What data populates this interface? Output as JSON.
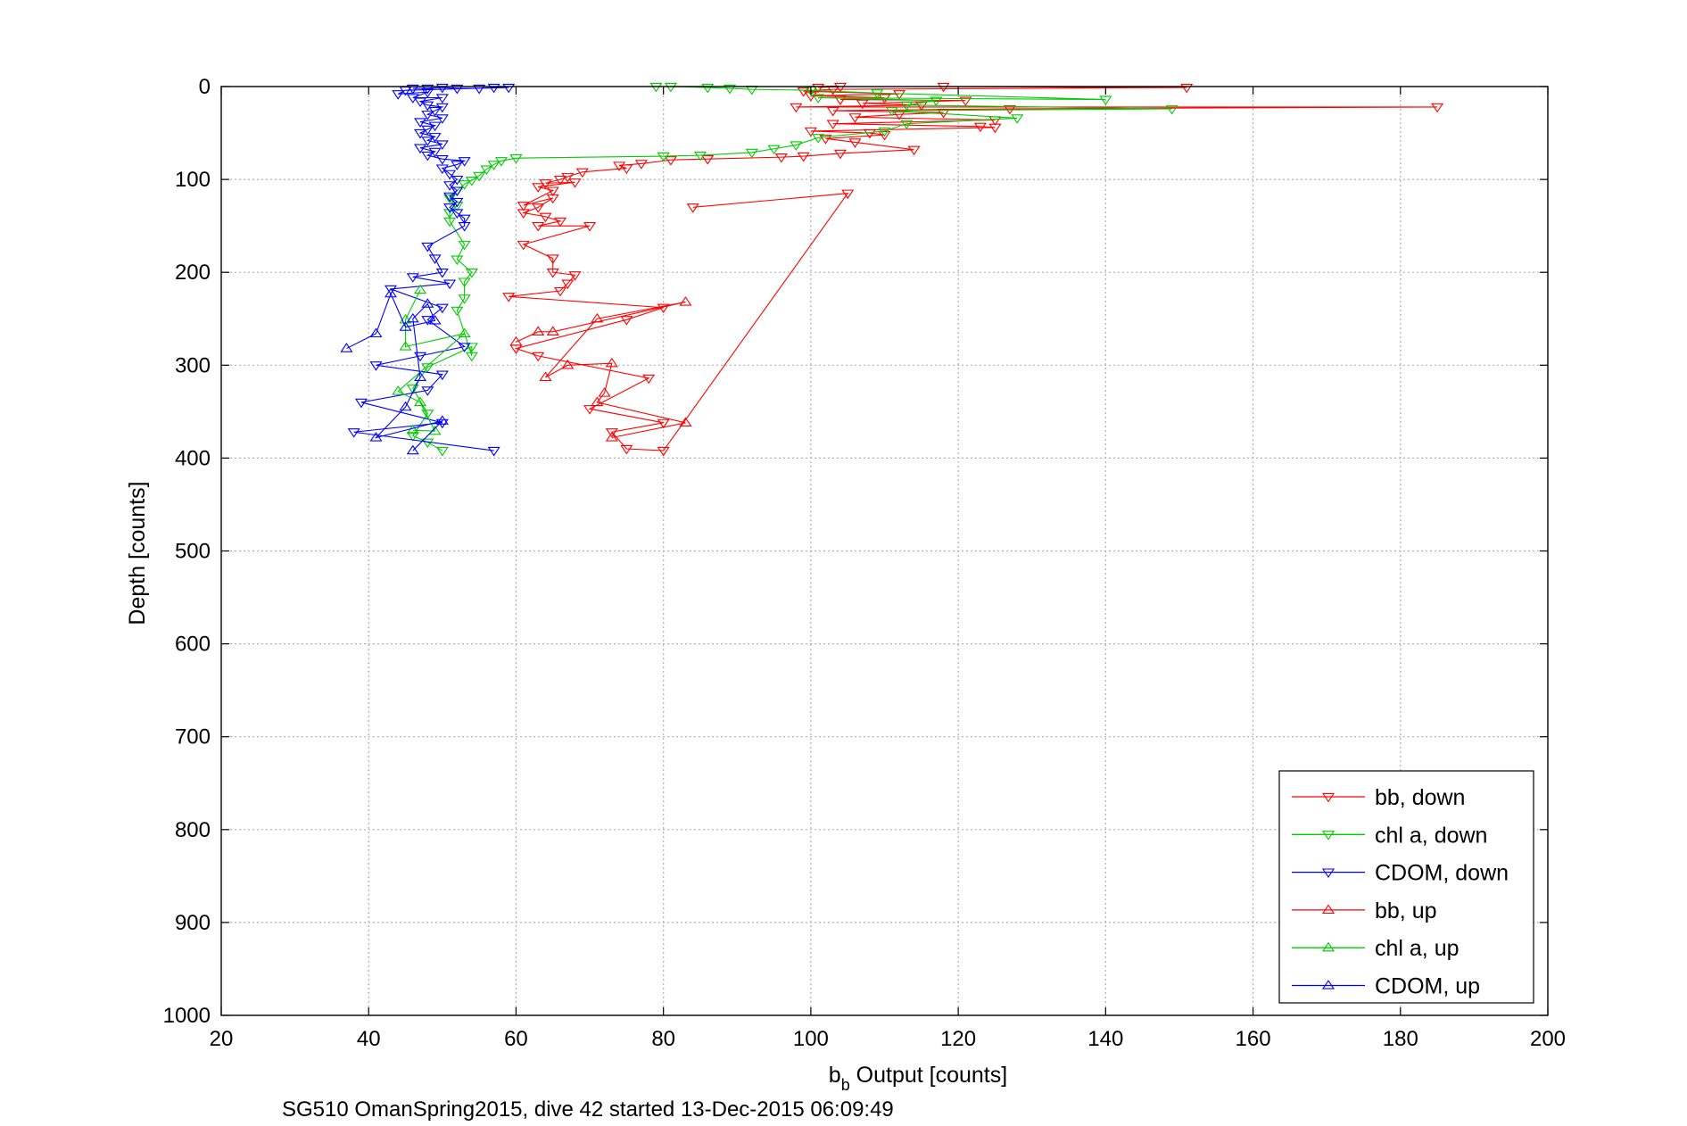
{
  "chart_data": {
    "type": "line",
    "xlabel": {
      "prefix": "b",
      "sub": "b",
      "suffix": " Output [counts]"
    },
    "ylabel": "Depth [counts]",
    "caption": "SG510 OmanSpring2015, dive 42 started 13-Dec-2015 06:09:49",
    "xlim": [
      20,
      200
    ],
    "ylim": [
      0,
      1000
    ],
    "y_reversed": true,
    "xticks": [
      "20",
      "40",
      "60",
      "80",
      "100",
      "120",
      "140",
      "160",
      "180",
      "200"
    ],
    "yticks": [
      "0",
      "100",
      "200",
      "300",
      "400",
      "500",
      "600",
      "700",
      "800",
      "900",
      "1000"
    ],
    "grid": true,
    "legend_position": "bottom-right",
    "series": [
      {
        "name": "bb, down",
        "color": "#ff0000",
        "marker": "triangle-down",
        "points": [
          [
            101,
            1
          ],
          [
            104,
            0
          ],
          [
            118,
            0
          ],
          [
            151,
            1
          ],
          [
            103,
            3
          ],
          [
            99,
            5
          ],
          [
            112,
            8
          ],
          [
            100,
            10
          ],
          [
            110,
            12
          ],
          [
            104,
            14
          ],
          [
            121,
            15
          ],
          [
            107,
            18
          ],
          [
            115,
            20
          ],
          [
            98,
            22
          ],
          [
            185,
            22
          ],
          [
            127,
            24
          ],
          [
            103,
            26
          ],
          [
            118,
            28
          ],
          [
            112,
            30
          ],
          [
            106,
            33
          ],
          [
            125,
            36
          ],
          [
            103,
            40
          ],
          [
            123,
            43
          ],
          [
            125,
            44
          ],
          [
            100,
            48
          ],
          [
            108,
            50
          ],
          [
            110,
            52
          ],
          [
            102,
            56
          ],
          [
            106,
            60
          ],
          [
            114,
            68
          ],
          [
            104,
            72
          ],
          [
            99,
            75
          ],
          [
            96,
            76
          ],
          [
            86,
            78
          ],
          [
            81,
            79
          ],
          [
            77,
            83
          ],
          [
            74,
            85
          ],
          [
            75,
            88
          ],
          [
            69,
            92
          ],
          [
            67,
            97
          ],
          [
            66,
            100
          ],
          [
            64,
            104
          ],
          [
            68,
            103
          ],
          [
            63,
            108
          ],
          [
            65,
            112
          ],
          [
            61,
            128
          ],
          [
            65,
            120
          ],
          [
            63,
            130
          ],
          [
            61,
            136
          ],
          [
            64,
            140
          ],
          [
            66,
            145
          ],
          [
            63,
            150
          ],
          [
            70,
            150
          ],
          [
            61,
            170
          ],
          [
            65,
            185
          ],
          [
            65,
            200
          ],
          [
            68,
            203
          ],
          [
            67,
            212
          ],
          [
            66,
            220
          ],
          [
            59,
            226
          ],
          [
            80,
            238
          ],
          [
            75,
            251
          ],
          [
            60,
            282
          ],
          [
            63,
            290
          ],
          [
            78,
            314
          ],
          [
            70,
            347
          ],
          [
            80,
            362
          ],
          [
            73,
            372
          ],
          [
            75,
            390
          ],
          [
            80,
            392
          ],
          [
            105,
            115
          ],
          [
            84,
            130
          ]
        ]
      },
      {
        "name": "chl a, down",
        "color": "#00cc00",
        "marker": "triangle-down",
        "points": [
          [
            79,
            0
          ],
          [
            81,
            0
          ],
          [
            86,
            1
          ],
          [
            89,
            2
          ],
          [
            92,
            3
          ],
          [
            100,
            4
          ],
          [
            109,
            7
          ],
          [
            140,
            14
          ],
          [
            101,
            12
          ],
          [
            117,
            15
          ],
          [
            113,
            20
          ],
          [
            149,
            24
          ],
          [
            111,
            26
          ],
          [
            128,
            34
          ],
          [
            113,
            40
          ],
          [
            110,
            48
          ],
          [
            101,
            55
          ],
          [
            98,
            63
          ],
          [
            95,
            67
          ],
          [
            92,
            71
          ],
          [
            85,
            74
          ],
          [
            80,
            75
          ],
          [
            60,
            77
          ],
          [
            58,
            80
          ],
          [
            57,
            84
          ],
          [
            56,
            89
          ],
          [
            55,
            96
          ],
          [
            54,
            101
          ],
          [
            53,
            105
          ],
          [
            52,
            112
          ],
          [
            51,
            120
          ],
          [
            52,
            128
          ],
          [
            51,
            136
          ],
          [
            51,
            145
          ],
          [
            53,
            170
          ],
          [
            52,
            186
          ],
          [
            54,
            200
          ],
          [
            53,
            210
          ],
          [
            53,
            228
          ],
          [
            52,
            241
          ],
          [
            54,
            290
          ],
          [
            54,
            280
          ],
          [
            48,
            302
          ],
          [
            46,
            325
          ],
          [
            48,
            352
          ],
          [
            46,
            376
          ],
          [
            48,
            383
          ],
          [
            50,
            392
          ]
        ]
      },
      {
        "name": "CDOM, down",
        "color": "#0000ff",
        "marker": "triangle-down",
        "points": [
          [
            46,
            2
          ],
          [
            48,
            2
          ],
          [
            50,
            1
          ],
          [
            52,
            2
          ],
          [
            55,
            2
          ],
          [
            57,
            1
          ],
          [
            59,
            1
          ],
          [
            45,
            4
          ],
          [
            44,
            8
          ],
          [
            48,
            6
          ],
          [
            46,
            12
          ],
          [
            50,
            12
          ],
          [
            47,
            16
          ],
          [
            48,
            20
          ],
          [
            50,
            22
          ],
          [
            49,
            26
          ],
          [
            48,
            30
          ],
          [
            50,
            34
          ],
          [
            47,
            38
          ],
          [
            49,
            42
          ],
          [
            48,
            46
          ],
          [
            47,
            50
          ],
          [
            49,
            54
          ],
          [
            48,
            58
          ],
          [
            50,
            62
          ],
          [
            47,
            66
          ],
          [
            49,
            70
          ],
          [
            48,
            74
          ],
          [
            50,
            78
          ],
          [
            53,
            80
          ],
          [
            52,
            84
          ],
          [
            50,
            88
          ],
          [
            51,
            94
          ],
          [
            52,
            100
          ],
          [
            51,
            106
          ],
          [
            52,
            112
          ],
          [
            51,
            118
          ],
          [
            52,
            124
          ],
          [
            51,
            130
          ],
          [
            52,
            136
          ],
          [
            53,
            142
          ],
          [
            53,
            150
          ],
          [
            48,
            172
          ],
          [
            49,
            185
          ],
          [
            50,
            200
          ],
          [
            46,
            205
          ],
          [
            51,
            212
          ],
          [
            43,
            218
          ],
          [
            50,
            238
          ],
          [
            48,
            251
          ],
          [
            53,
            280
          ],
          [
            47,
            290
          ],
          [
            41,
            300
          ],
          [
            50,
            310
          ],
          [
            48,
            327
          ],
          [
            39,
            340
          ],
          [
            50,
            362
          ],
          [
            38,
            372
          ],
          [
            57,
            392
          ]
        ]
      },
      {
        "name": "bb, up",
        "color": "#ff0000",
        "marker": "triangle-up",
        "points": [
          [
            60,
            275
          ],
          [
            63,
            264
          ],
          [
            65,
            264
          ],
          [
            83,
            232
          ],
          [
            71,
            250
          ],
          [
            64,
            313
          ],
          [
            67,
            300
          ],
          [
            73,
            298
          ],
          [
            72,
            330
          ],
          [
            71,
            340
          ],
          [
            83,
            362
          ],
          [
            73,
            378
          ]
        ]
      },
      {
        "name": "chl a, up",
        "color": "#00cc00",
        "marker": "triangle-up",
        "points": [
          [
            47,
            219
          ],
          [
            45,
            251
          ],
          [
            45,
            280
          ],
          [
            53,
            266
          ],
          [
            44,
            328
          ],
          [
            47,
            340
          ],
          [
            49,
            371
          ],
          [
            46,
            370
          ]
        ]
      },
      {
        "name": "CDOM, up",
        "color": "#0000ff",
        "marker": "triangle-up",
        "points": [
          [
            37,
            282
          ],
          [
            41,
            266
          ],
          [
            43,
            223
          ],
          [
            45,
            259
          ],
          [
            49,
            252
          ],
          [
            48,
            234
          ],
          [
            46,
            250
          ],
          [
            47,
            313
          ],
          [
            45,
            345
          ],
          [
            41,
            378
          ],
          [
            50,
            360
          ],
          [
            46,
            392
          ]
        ]
      }
    ]
  }
}
